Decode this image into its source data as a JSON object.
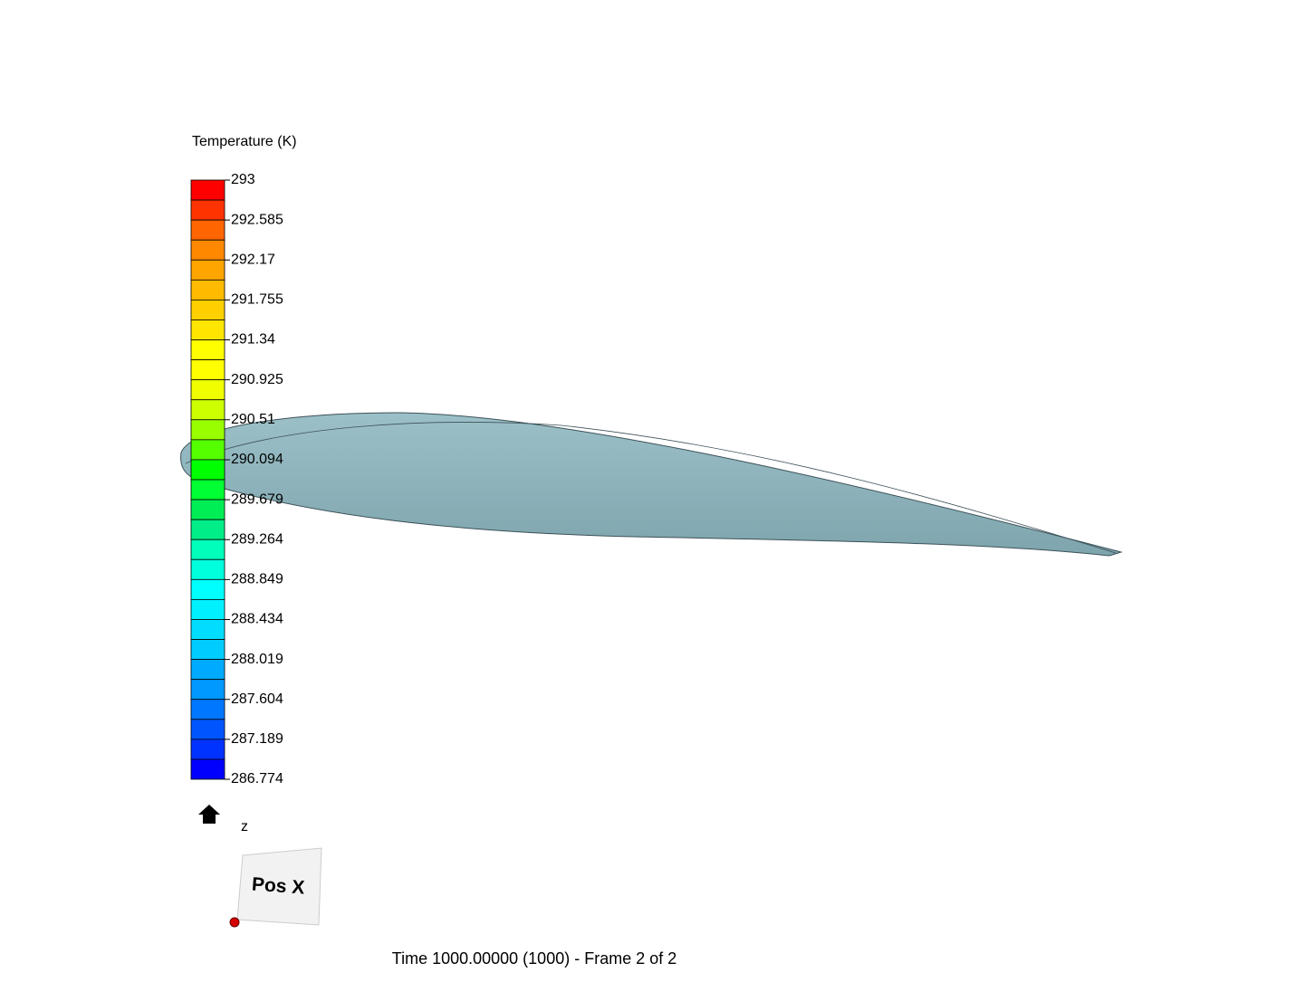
{
  "legend": {
    "title": "Temperature (K)",
    "ticks": [
      293,
      292.585,
      292.17,
      291.755,
      291.34,
      290.925,
      290.51,
      290.094,
      289.679,
      289.264,
      288.849,
      288.434,
      288.019,
      287.604,
      287.189,
      286.774
    ],
    "colors": [
      "#ff0000",
      "#ff3300",
      "#ff6600",
      "#ff8800",
      "#ffa500",
      "#ffbb00",
      "#ffd000",
      "#ffe600",
      "#ffff00",
      "#ffff00",
      "#f0ff00",
      "#ccff00",
      "#99ff00",
      "#55ff00",
      "#00ff00",
      "#00ff33",
      "#00ee55",
      "#00ee88",
      "#00ffbb",
      "#00ffdd",
      "#00ffff",
      "#00f0ff",
      "#00ddff",
      "#00ccff",
      "#00aaff",
      "#0099ff",
      "#0077ff",
      "#0055ff",
      "#0033ff",
      "#0000ff"
    ]
  },
  "axes": {
    "z": "z"
  },
  "view_cube": {
    "face": "Pos X"
  },
  "status": {
    "time": "Time 1000.00000 (1000) - Frame 2 of 2"
  }
}
